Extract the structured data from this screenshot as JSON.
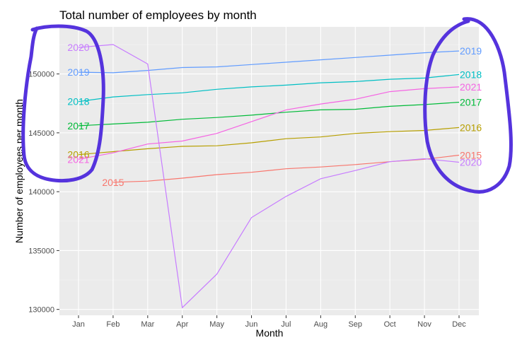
{
  "chart_data": {
    "type": "line",
    "title": "Total number of employees by month",
    "xlabel": "Month",
    "ylabel": "Number of employees per month",
    "categories": [
      "Jan",
      "Feb",
      "Mar",
      "Apr",
      "May",
      "Jun",
      "Jul",
      "Aug",
      "Sep",
      "Oct",
      "Nov",
      "Dec"
    ],
    "ylim": [
      129500,
      154000
    ],
    "yticks": [
      130000,
      135000,
      140000,
      145000,
      150000
    ],
    "ytick_labels": [
      "130000",
      "135000",
      "140000",
      "145000",
      "150000"
    ],
    "grid": true,
    "series": [
      {
        "name": "2015",
        "color": "#F8766D",
        "values": [
          null,
          140800,
          140900,
          141150,
          141450,
          141650,
          141950,
          142100,
          142300,
          142550,
          142750,
          143100
        ]
      },
      {
        "name": "2016",
        "color": "#B79F00",
        "values": [
          143150,
          143400,
          143650,
          143850,
          143900,
          144150,
          144500,
          144650,
          144950,
          145100,
          145200,
          145450
        ]
      },
      {
        "name": "2017",
        "color": "#00BA38",
        "values": [
          145600,
          145750,
          145900,
          146150,
          146300,
          146500,
          146750,
          146950,
          147000,
          147250,
          147400,
          147600
        ]
      },
      {
        "name": "2018",
        "color": "#00BFC4",
        "values": [
          147650,
          148050,
          148250,
          148400,
          148700,
          148900,
          149050,
          149250,
          149350,
          149550,
          149650,
          149950
        ]
      },
      {
        "name": "2019",
        "color": "#619CFF",
        "values": [
          150150,
          150100,
          150300,
          150550,
          150600,
          150800,
          151000,
          151200,
          151400,
          151600,
          151800,
          151950
        ]
      },
      {
        "name": "2020",
        "color": "#C77CFF",
        "values": [
          152250,
          152500,
          150850,
          130150,
          133000,
          137800,
          139600,
          141100,
          141800,
          142550,
          142800,
          142500
        ]
      },
      {
        "name": "2021",
        "color": "#F564E3",
        "values": [
          142750,
          143300,
          144050,
          144300,
          144950,
          145950,
          146950,
          147450,
          147850,
          148500,
          148750,
          148900
        ]
      }
    ]
  },
  "annotations": {
    "stroke_color": "#5533DD",
    "items": [
      {
        "shape": "hand-drawn circle",
        "around": "Jan values"
      },
      {
        "shape": "hand-drawn circle",
        "around": "Dec values"
      }
    ]
  }
}
